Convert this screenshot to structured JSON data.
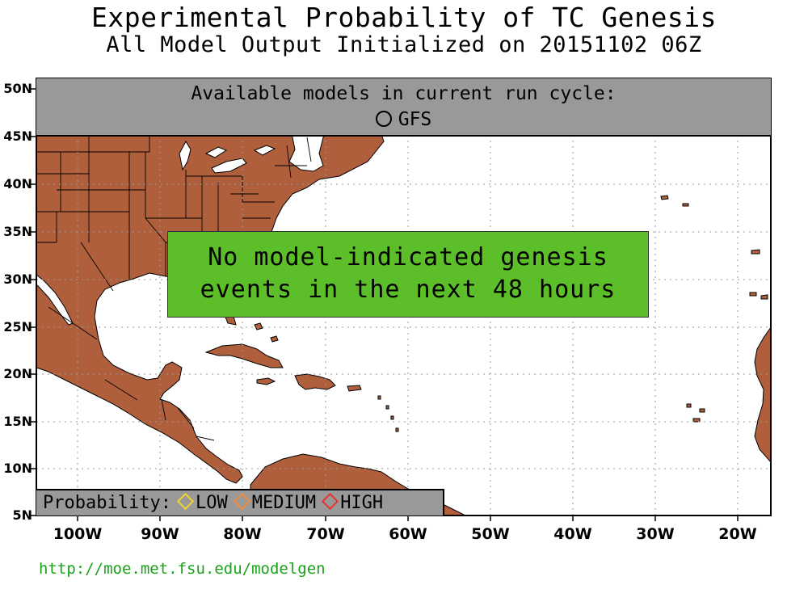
{
  "title": "Experimental Probability of TC Genesis",
  "subtitle": "All Model Output Initialized on 20151102 06Z",
  "models": {
    "heading": "Available models in current run cycle:",
    "list_label": "GFS",
    "list_icon": "circle-icon"
  },
  "message": {
    "line1": "No model-indicated genesis",
    "line2": "events in the next 48 hours",
    "background": "#5cbf2a"
  },
  "legend": {
    "label": "Probability:",
    "low": "LOW",
    "medium": "MEDIUM",
    "high": "HIGH",
    "colors": {
      "low": "#f2d430",
      "medium": "#f08c3c",
      "high": "#e83232"
    }
  },
  "axes": {
    "lat_labels": [
      "50N",
      "45N",
      "40N",
      "35N",
      "30N",
      "25N",
      "20N",
      "15N",
      "10N",
      "5N"
    ],
    "lon_labels": [
      "100W",
      "90W",
      "80W",
      "70W",
      "60W",
      "50W",
      "40W",
      "30W",
      "20W"
    ]
  },
  "colors": {
    "land": "#b05f3c",
    "ocean": "#ffffff",
    "panel": "#999999"
  },
  "url": "http://moe.met.fsu.edu/modelgen"
}
